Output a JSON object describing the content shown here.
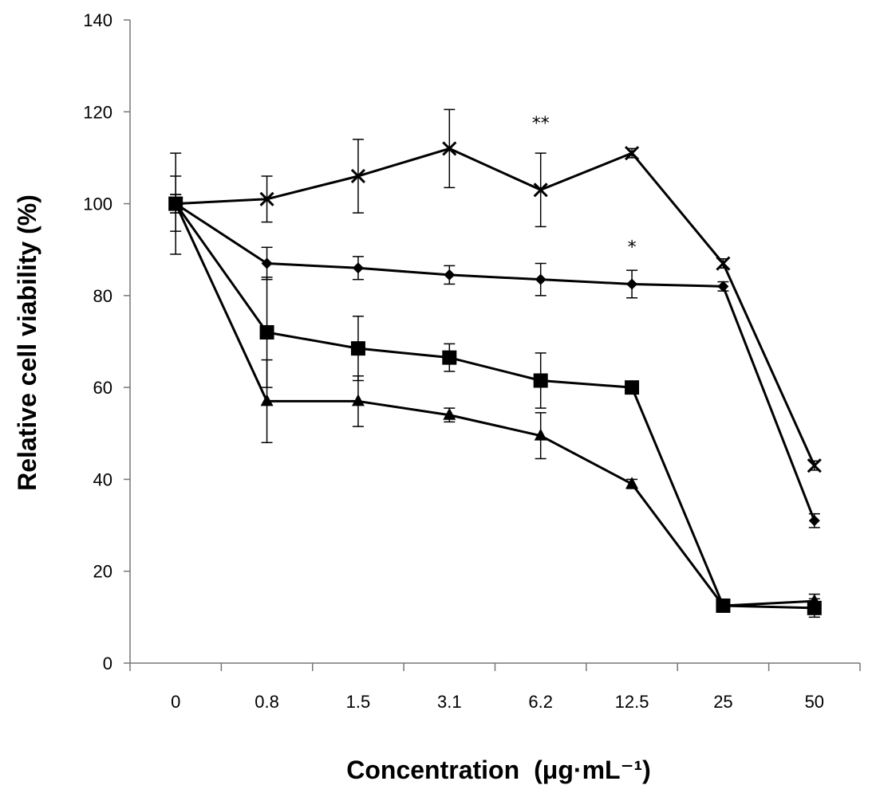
{
  "chart_data": {
    "type": "line",
    "title": "",
    "xlabel": "Concentration",
    "xlabel_unit": "(μg·mL⁻¹)",
    "ylabel": "Relative cell viability (%)",
    "categories": [
      "0",
      "0.8",
      "1.5",
      "3.1",
      "6.2",
      "12.5",
      "25",
      "50"
    ],
    "ylim": [
      0,
      140
    ],
    "yticks": [
      "0",
      "20",
      "40",
      "60",
      "80",
      "100",
      "120",
      "140"
    ],
    "grid": false,
    "legend": "none",
    "series": [
      {
        "name": "cross",
        "marker": "x",
        "values": [
          100,
          101,
          106,
          112,
          103,
          111,
          87,
          43
        ],
        "errors": [
          11,
          5,
          8,
          8.5,
          8,
          1,
          1,
          1
        ]
      },
      {
        "name": "diamond",
        "marker": "diamond",
        "values": [
          100,
          87,
          86,
          84.5,
          83.5,
          82.5,
          82,
          31
        ],
        "errors": [
          6,
          3.5,
          2.5,
          2,
          3.5,
          3,
          1,
          1.5
        ]
      },
      {
        "name": "square",
        "marker": "square",
        "values": [
          100,
          72,
          68.5,
          66.5,
          61.5,
          60,
          12.5,
          12
        ],
        "errors": [
          2,
          12,
          7,
          3,
          6,
          1,
          1,
          2
        ]
      },
      {
        "name": "triangle",
        "marker": "triangle",
        "values": [
          100,
          57,
          57,
          54,
          49.5,
          39,
          12.5,
          13.5
        ],
        "errors": [
          2,
          9,
          5.5,
          1.5,
          5,
          1,
          1,
          1.5
        ]
      }
    ],
    "annotations": [
      {
        "text": "**",
        "category": "6.2",
        "y": 118
      },
      {
        "text": "*",
        "category": "12.5",
        "y": 91
      }
    ]
  }
}
